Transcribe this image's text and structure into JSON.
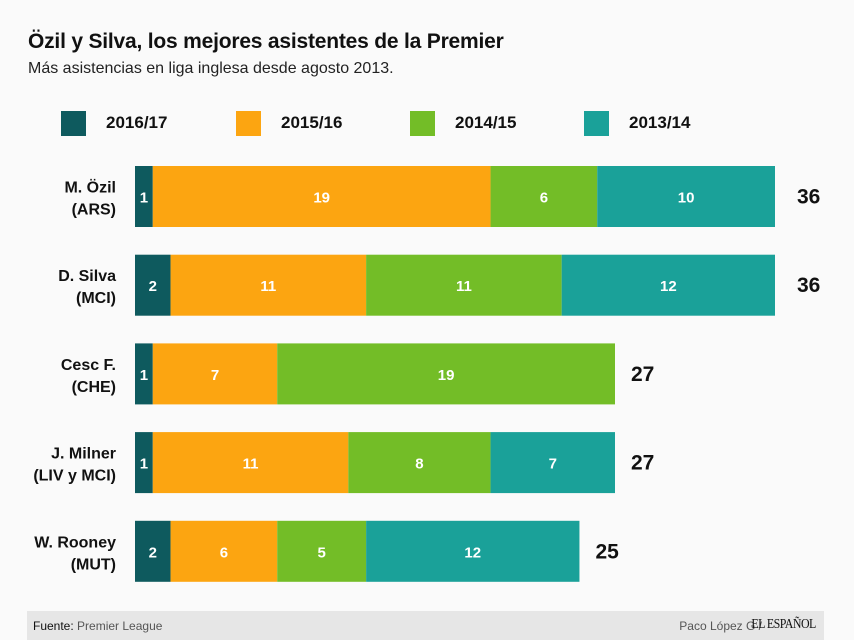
{
  "header": {
    "title": "Özil y Silva, los mejores asistentes de la Premier",
    "subtitle": "Más asistencias en liga inglesa desde agosto 2013."
  },
  "colors": {
    "2016/17": "#0e5a5e",
    "2015/16": "#fca511",
    "2014/15": "#73bd27",
    "2013/14": "#1aa199",
    "background": "#fafafa",
    "footer_bg": "#e6e6e6"
  },
  "chart_data": {
    "type": "bar",
    "orientation": "horizontal",
    "stacked": true,
    "title": "Özil y Silva, los mejores asistentes de la Premier",
    "subtitle": "Más asistencias en liga inglesa desde agosto 2013.",
    "xlabel": "",
    "ylabel": "",
    "grid": false,
    "legend_position": "top",
    "categories": [
      {
        "name": "M. Özil",
        "team": "(ARS)"
      },
      {
        "name": "D. Silva",
        "team": "(MCI)"
      },
      {
        "name": "Cesc F.",
        "team": "(CHE)"
      },
      {
        "name": "J. Milner",
        "team": "(LIV y MCI)"
      },
      {
        "name": "W. Rooney",
        "team": "(MUT)"
      }
    ],
    "series": [
      {
        "name": "2016/17",
        "color": "#0e5a5e",
        "values": [
          1,
          2,
          1,
          1,
          2
        ]
      },
      {
        "name": "2015/16",
        "color": "#fca511",
        "values": [
          19,
          11,
          7,
          11,
          6
        ]
      },
      {
        "name": "2014/15",
        "color": "#73bd27",
        "values": [
          6,
          11,
          19,
          8,
          5
        ]
      },
      {
        "name": "2013/14",
        "color": "#1aa199",
        "values": [
          10,
          12,
          0,
          7,
          12
        ]
      }
    ],
    "totals": [
      36,
      36,
      27,
      27,
      25
    ],
    "xlim": [
      0,
      36
    ]
  },
  "footer": {
    "source_label": "Fuente:",
    "source_value": "Premier League",
    "credit": "Paco López G  /",
    "brand": "EL ESPAÑOL"
  }
}
